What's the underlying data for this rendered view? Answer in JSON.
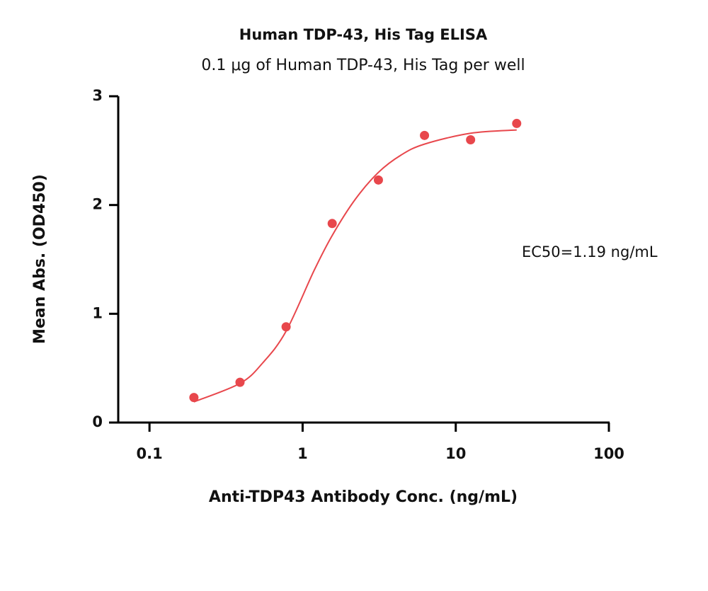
{
  "chart_data": {
    "type": "scatter",
    "title": "Human TDP-43, His Tag ELISA",
    "subtitle": "0.1 μg of Human TDP-43, His Tag per well",
    "x_label": "Anti-TDP43 Antibody Conc. (ng/mL)",
    "y_label": "Mean Abs. (OD450)",
    "annotation": "EC50=1.19 ng/mL",
    "x": [
      0.195,
      0.39,
      0.78,
      1.56,
      3.125,
      6.25,
      12.5,
      25
    ],
    "values": [
      0.23,
      0.37,
      0.88,
      1.83,
      2.23,
      2.64,
      2.6,
      2.75
    ],
    "color": "#e8474c",
    "curve": {
      "x": [
        0.195,
        0.39,
        0.55,
        0.78,
        1.19,
        1.56,
        2.2,
        3.125,
        4.4,
        6.25,
        12.5,
        25
      ],
      "values": [
        0.19,
        0.36,
        0.55,
        0.84,
        1.4,
        1.72,
        2.05,
        2.3,
        2.46,
        2.56,
        2.66,
        2.69
      ]
    },
    "xlog": true,
    "xlim": [
      0.0625,
      100
    ],
    "xticks": [
      0.1,
      1,
      10,
      100
    ],
    "ylim": [
      0,
      3
    ],
    "yticks": [
      0,
      1,
      2,
      3
    ]
  }
}
